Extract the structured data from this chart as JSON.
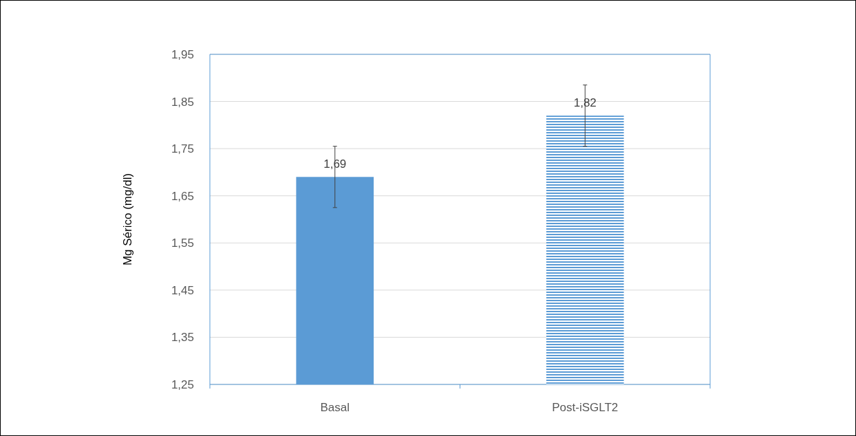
{
  "chart_data": {
    "type": "bar",
    "ylabel": "Mg Sérico (mg/dl)",
    "categories": [
      "Basal",
      "Post-iSGLT2"
    ],
    "values": [
      1.69,
      1.82
    ],
    "colors": [
      "#5b9bd5",
      "#5b9bd5"
    ],
    "errors": [
      0.065,
      0.065
    ],
    "value_labels": [
      "1,69",
      "1,82"
    ],
    "ylim": [
      1.25,
      1.95
    ],
    "yticks": [
      {
        "value": 1.25,
        "label": "1,25"
      },
      {
        "value": 1.35,
        "label": "1,35"
      },
      {
        "value": 1.45,
        "label": "1,45"
      },
      {
        "value": 1.55,
        "label": "1,55"
      },
      {
        "value": 1.65,
        "label": "1,65"
      },
      {
        "value": 1.75,
        "label": "1,75"
      },
      {
        "value": 1.85,
        "label": "1,85"
      },
      {
        "value": 1.95,
        "label": "1,95"
      }
    ],
    "grid": "y"
  }
}
